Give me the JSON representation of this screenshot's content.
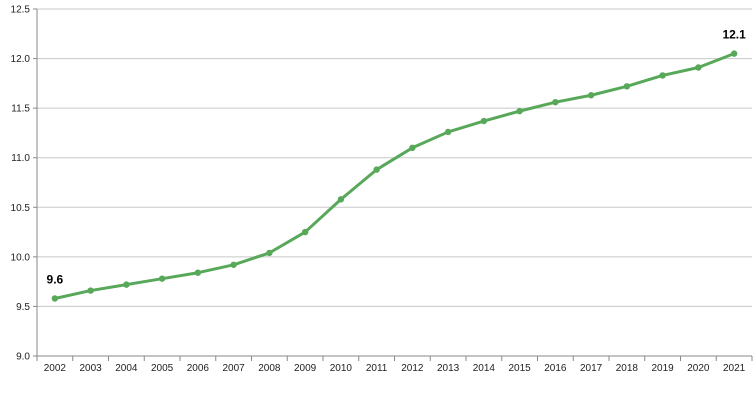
{
  "chart_data": {
    "type": "line",
    "title": "",
    "xlabel": "",
    "ylabel": "",
    "x": [
      "2002",
      "2003",
      "2004",
      "2005",
      "2006",
      "2007",
      "2008",
      "2009",
      "2010",
      "2011",
      "2012",
      "2013",
      "2014",
      "2015",
      "2016",
      "2017",
      "2018",
      "2019",
      "2020",
      "2021"
    ],
    "series": [
      {
        "values": [
          9.58,
          9.66,
          9.72,
          9.78,
          9.84,
          9.92,
          10.04,
          10.25,
          10.58,
          10.88,
          11.1,
          11.26,
          11.37,
          11.47,
          11.56,
          11.63,
          11.72,
          11.83,
          11.91,
          12.05
        ],
        "color": "#58a85a"
      }
    ],
    "ylim": [
      9.0,
      12.5
    ],
    "yticks": [
      "9.0",
      "9.5",
      "10.0",
      "10.5",
      "11.0",
      "11.5",
      "12.0",
      "12.5"
    ],
    "grid": "horizontal",
    "legend": "none",
    "data_labels": [
      {
        "index": 0,
        "text": "9.6"
      },
      {
        "index": 19,
        "text": "12.1"
      }
    ]
  }
}
